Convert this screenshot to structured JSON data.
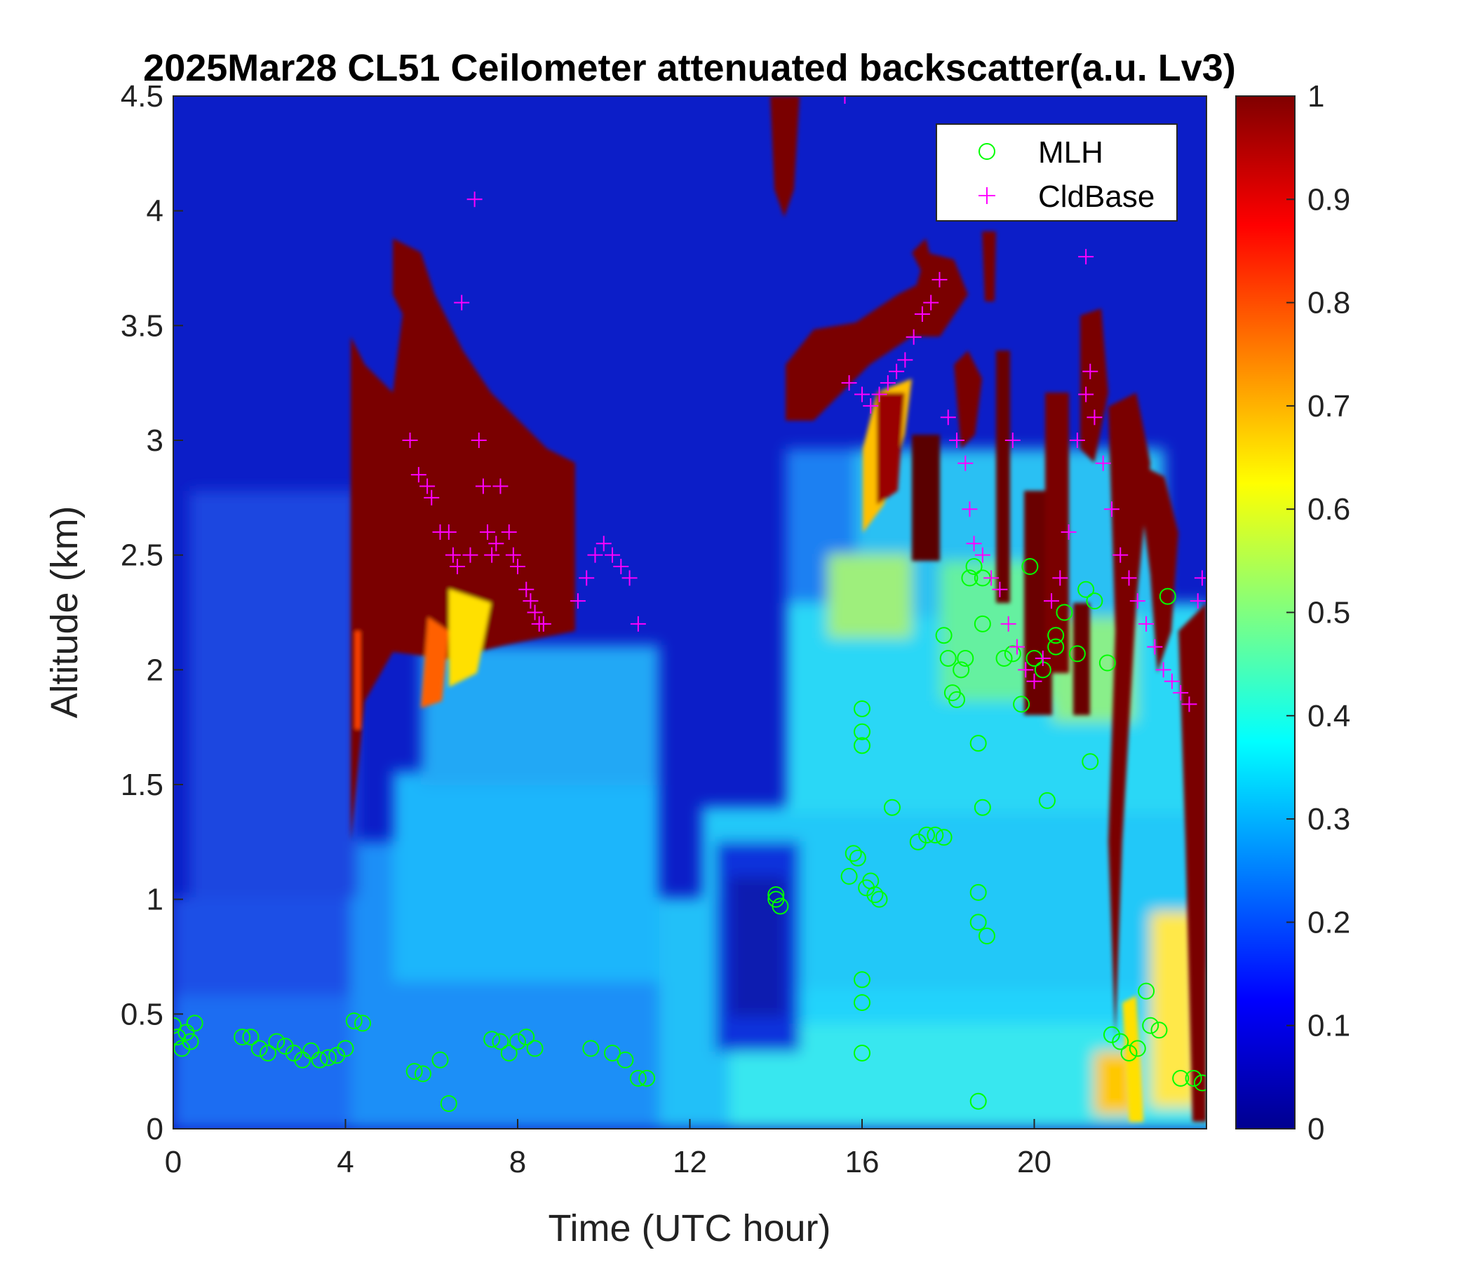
{
  "chart_data": {
    "type": "heatmap",
    "title": "2025Mar28 CL51 Ceilometer attenuated backscatter(a.u. Lv3)",
    "xlabel": "Time (UTC hour)",
    "ylabel": "Altitude (km)",
    "xlim": [
      0,
      24
    ],
    "ylim": [
      0,
      4.5
    ],
    "xticks": [
      0,
      4,
      8,
      12,
      16,
      20
    ],
    "xtick_labels": [
      "0",
      "4",
      "8",
      "12",
      "16",
      "20"
    ],
    "yticks": [
      0,
      0.5,
      1,
      1.5,
      2,
      2.5,
      3,
      3.5,
      4,
      4.5
    ],
    "ytick_labels": [
      "0",
      "0.5",
      "1",
      "1.5",
      "2",
      "2.5",
      "3",
      "3.5",
      "4",
      "4.5"
    ],
    "colorbar": {
      "colormap": "jet",
      "range": [
        0,
        1
      ],
      "ticks": [
        0,
        0.1,
        0.2,
        0.3,
        0.4,
        0.5,
        0.6,
        0.7,
        0.8,
        0.9,
        1
      ],
      "tick_labels": [
        "0",
        "0.1",
        "0.2",
        "0.3",
        "0.4",
        "0.5",
        "0.6",
        "0.7",
        "0.8",
        "0.9",
        "1"
      ]
    },
    "legend": {
      "placement": "top-right",
      "entries": [
        {
          "name": "MLH",
          "marker": "circle",
          "color": "#00ff00"
        },
        {
          "name": "CldBase",
          "marker": "plus",
          "color": "#ff00ff"
        }
      ]
    },
    "series": [
      {
        "name": "MLH",
        "x": [
          0.0,
          0.1,
          0.2,
          0.3,
          0.4,
          0.5,
          1.6,
          1.8,
          2.0,
          2.2,
          2.4,
          2.6,
          2.8,
          3.0,
          3.2,
          3.4,
          3.6,
          3.8,
          4.0,
          4.2,
          4.4,
          5.6,
          5.8,
          6.2,
          6.4,
          7.4,
          7.6,
          7.8,
          8.0,
          8.2,
          8.4,
          9.7,
          10.2,
          10.5,
          10.8,
          11.0,
          14.0,
          14.0,
          14.1,
          15.7,
          15.8,
          15.9,
          16.0,
          16.0,
          16.0,
          16.0,
          16.0,
          16.0,
          16.1,
          16.2,
          16.3,
          16.4,
          16.7,
          17.3,
          17.5,
          17.7,
          17.9,
          17.9,
          18.0,
          18.1,
          18.2,
          18.3,
          18.4,
          18.5,
          18.6,
          18.7,
          18.7,
          18.7,
          18.7,
          18.8,
          18.8,
          18.8,
          18.9,
          19.3,
          19.5,
          19.7,
          19.9,
          20.0,
          20.2,
          20.3,
          20.5,
          20.5,
          20.7,
          21.0,
          21.2,
          21.3,
          21.4,
          21.7,
          21.8,
          22.0,
          22.2,
          22.4,
          22.6,
          22.7,
          22.9,
          23.1,
          23.4,
          23.7,
          23.9
        ],
        "y": [
          0.45,
          0.4,
          0.35,
          0.42,
          0.38,
          0.46,
          0.4,
          0.4,
          0.35,
          0.33,
          0.38,
          0.36,
          0.33,
          0.3,
          0.34,
          0.3,
          0.31,
          0.32,
          0.35,
          0.47,
          0.46,
          0.25,
          0.24,
          0.3,
          0.11,
          0.39,
          0.38,
          0.33,
          0.38,
          0.4,
          0.35,
          0.35,
          0.33,
          0.3,
          0.22,
          0.22,
          1.02,
          1.0,
          0.97,
          1.1,
          1.2,
          1.18,
          1.83,
          1.73,
          1.67,
          0.65,
          0.55,
          0.33,
          1.05,
          1.08,
          1.02,
          1.0,
          1.4,
          1.25,
          1.28,
          1.28,
          1.27,
          2.15,
          2.05,
          1.9,
          1.87,
          2.0,
          2.05,
          2.4,
          2.45,
          1.68,
          1.03,
          0.9,
          0.12,
          2.4,
          2.2,
          1.4,
          0.84,
          2.05,
          2.07,
          1.85,
          2.45,
          2.05,
          2.0,
          1.43,
          2.15,
          2.1,
          2.25,
          2.07,
          2.35,
          1.6,
          2.3,
          2.03,
          0.41,
          0.38,
          0.33,
          0.35,
          0.6,
          0.45,
          0.43,
          2.32,
          0.22,
          0.22,
          0.2
        ]
      },
      {
        "name": "CldBase",
        "x": [
          5.5,
          5.7,
          5.9,
          6.0,
          6.2,
          6.4,
          6.5,
          6.6,
          6.7,
          6.9,
          7.1,
          7.2,
          7.3,
          7.4,
          7.5,
          7.6,
          7.8,
          7.9,
          8.0,
          8.2,
          8.3,
          8.4,
          8.5,
          8.6,
          9.4,
          9.6,
          9.8,
          10.0,
          10.2,
          10.4,
          10.6,
          10.8,
          15.7,
          16.0,
          16.2,
          16.4,
          16.6,
          16.8,
          17.0,
          17.2,
          17.4,
          17.6,
          17.8,
          18.0,
          18.2,
          18.4,
          18.5,
          18.6,
          18.8,
          19.0,
          19.2,
          19.4,
          19.6,
          19.8,
          20.0,
          20.2,
          20.4,
          20.6,
          20.8,
          21.0,
          21.2,
          21.3,
          21.4,
          21.6,
          21.8,
          22.0,
          22.2,
          22.4,
          22.6,
          22.8,
          23.0,
          23.2,
          23.4,
          23.6,
          23.8,
          23.9,
          15.6,
          7.0,
          19.5,
          21.2
        ],
        "y": [
          3.0,
          2.85,
          2.8,
          2.75,
          2.6,
          2.6,
          2.5,
          2.45,
          3.6,
          2.5,
          3.0,
          2.8,
          2.6,
          2.5,
          2.55,
          2.8,
          2.6,
          2.5,
          2.45,
          2.35,
          2.3,
          2.25,
          2.2,
          2.2,
          2.3,
          2.4,
          2.5,
          2.55,
          2.5,
          2.45,
          2.4,
          2.2,
          3.25,
          3.2,
          3.15,
          3.2,
          3.25,
          3.3,
          3.35,
          3.45,
          3.55,
          3.6,
          3.7,
          3.1,
          3.0,
          2.9,
          2.7,
          2.55,
          2.5,
          2.4,
          2.35,
          2.2,
          2.1,
          2.0,
          1.95,
          2.05,
          2.3,
          2.4,
          2.6,
          3.0,
          3.2,
          3.3,
          3.1,
          2.9,
          2.7,
          2.5,
          2.4,
          2.3,
          2.2,
          2.1,
          2.0,
          1.95,
          1.9,
          1.85,
          2.3,
          2.4,
          4.5,
          4.05,
          3.0,
          3.8
        ]
      }
    ]
  }
}
